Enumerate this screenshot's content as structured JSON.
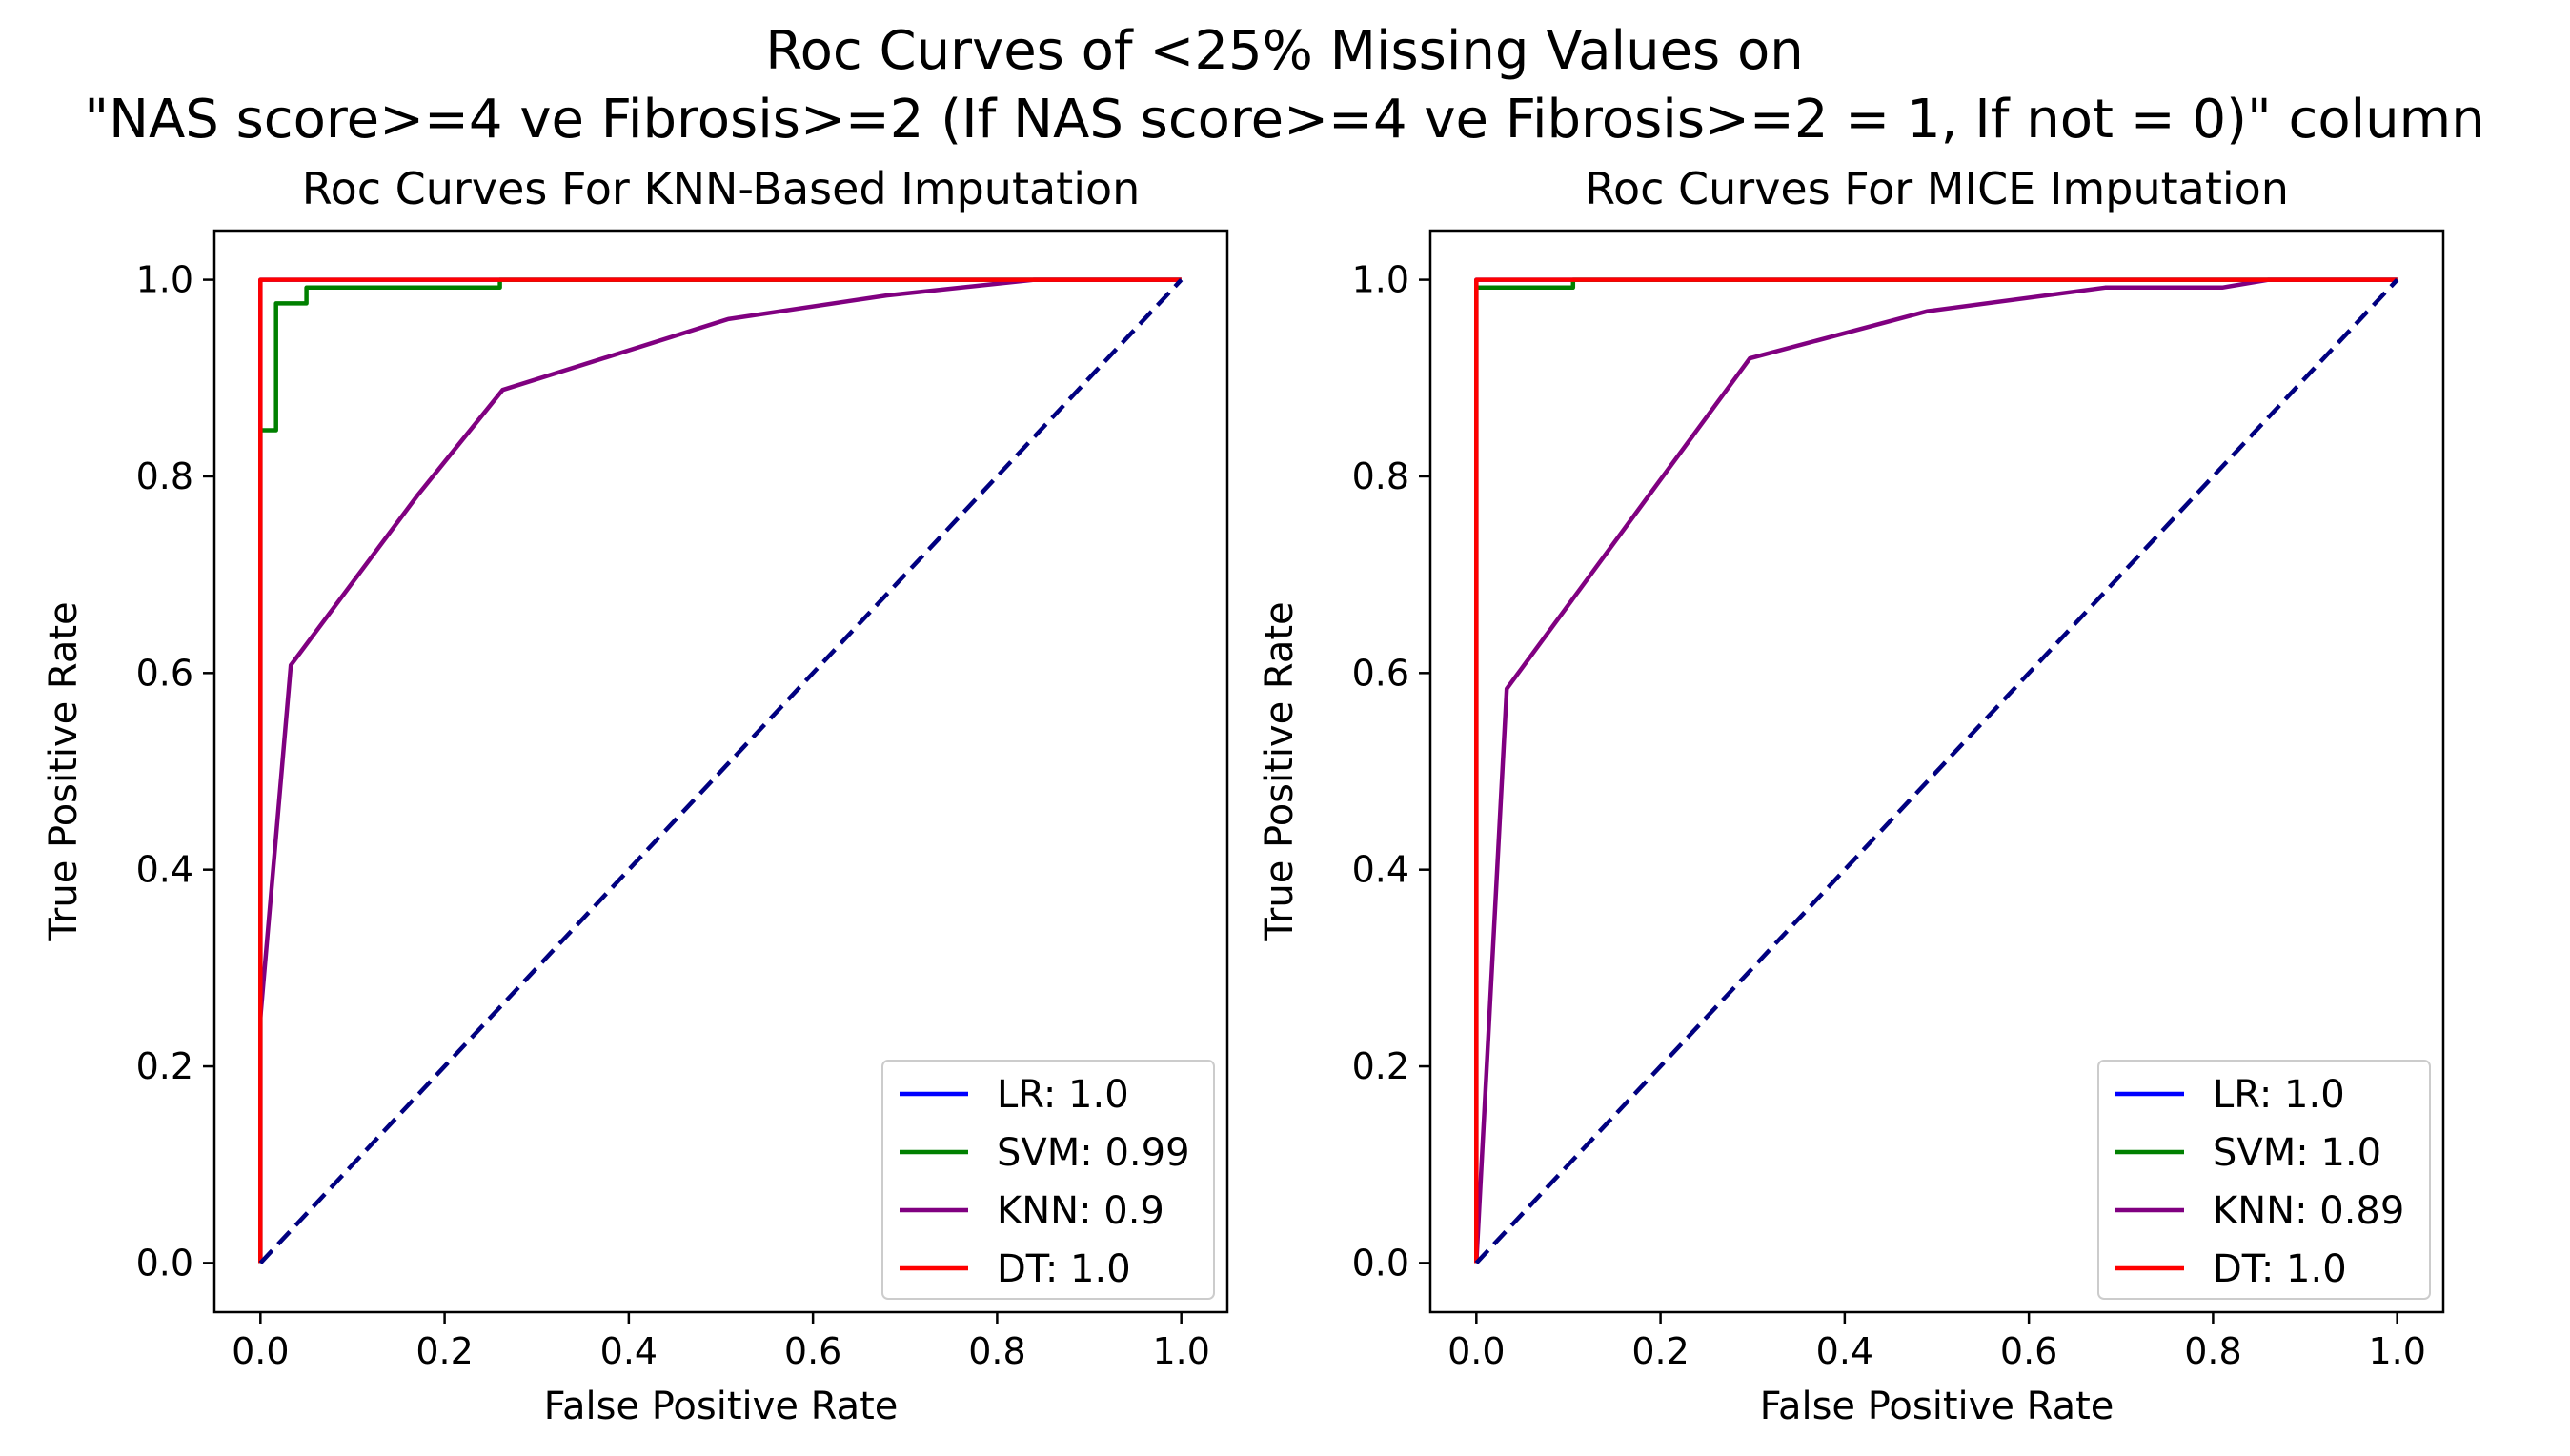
{
  "figure": {
    "suptitle_line1": "Roc Curves of <25% Missing Values on",
    "suptitle_line2": "\"NAS score>=4 ve Fibrosis>=2 (If NAS score>=4 ve Fibrosis>=2 = 1, If not = 0)\" column"
  },
  "chart_data": [
    {
      "type": "line",
      "title": "Roc Curves For KNN-Based Imputation",
      "xlabel": "False Positive Rate",
      "ylabel": "True Positive Rate",
      "xlim": [
        -0.05,
        1.05
      ],
      "ylim": [
        -0.05,
        1.05
      ],
      "xticks": [
        "0.0",
        "0.2",
        "0.4",
        "0.6",
        "0.8",
        "1.0"
      ],
      "yticks": [
        "0.0",
        "0.2",
        "0.4",
        "0.6",
        "0.8",
        "1.0"
      ],
      "legend_position": "lower-right",
      "grid": false,
      "series": [
        {
          "name": "LR: 1.0",
          "color": "#0000ff",
          "dashed": false,
          "x": [
            0,
            0,
            1
          ],
          "y": [
            0,
            1,
            1
          ]
        },
        {
          "name": "SVM: 0.99",
          "color": "#008000",
          "dashed": false,
          "x": [
            0,
            0,
            0.017,
            0.017,
            0.05,
            0.05,
            0.26,
            0.26,
            1
          ],
          "y": [
            0,
            0.847,
            0.847,
            0.976,
            0.976,
            0.992,
            0.992,
            1,
            1
          ]
        },
        {
          "name": "KNN: 0.9",
          "color": "#800080",
          "dashed": false,
          "x": [
            0,
            0.033,
            0.17,
            0.263,
            0.508,
            0.68,
            0.84,
            1
          ],
          "y": [
            0.25,
            0.608,
            0.78,
            0.888,
            0.96,
            0.984,
            1,
            1
          ]
        },
        {
          "name": "DT: 1.0",
          "color": "#ff0000",
          "dashed": false,
          "x": [
            0,
            0,
            1
          ],
          "y": [
            0,
            1,
            1
          ]
        },
        {
          "name": "",
          "color": "#000080",
          "dashed": true,
          "x": [
            0,
            1
          ],
          "y": [
            0,
            1
          ]
        }
      ]
    },
    {
      "type": "line",
      "title": "Roc Curves For MICE Imputation",
      "xlabel": "False Positive Rate",
      "ylabel": "True Positive Rate",
      "xlim": [
        -0.05,
        1.05
      ],
      "ylim": [
        -0.05,
        1.05
      ],
      "xticks": [
        "0.0",
        "0.2",
        "0.4",
        "0.6",
        "0.8",
        "1.0"
      ],
      "yticks": [
        "0.0",
        "0.2",
        "0.4",
        "0.6",
        "0.8",
        "1.0"
      ],
      "legend_position": "lower-right",
      "grid": false,
      "series": [
        {
          "name": "LR: 1.0",
          "color": "#0000ff",
          "dashed": false,
          "x": [
            0,
            0,
            1
          ],
          "y": [
            0,
            1,
            1
          ]
        },
        {
          "name": "SVM: 1.0",
          "color": "#008000",
          "dashed": false,
          "x": [
            0,
            0,
            0.105,
            0.105,
            1
          ],
          "y": [
            0,
            0.992,
            0.992,
            1,
            1
          ]
        },
        {
          "name": "KNN: 0.89",
          "color": "#800080",
          "dashed": false,
          "x": [
            0,
            0.033,
            0.19,
            0.297,
            0.49,
            0.683,
            0.81,
            0.86,
            1
          ],
          "y": [
            0,
            0.584,
            0.784,
            0.92,
            0.968,
            0.992,
            0.992,
            1,
            1
          ]
        },
        {
          "name": "DT: 1.0",
          "color": "#ff0000",
          "dashed": false,
          "x": [
            0,
            0,
            1
          ],
          "y": [
            0,
            1,
            1
          ]
        },
        {
          "name": "",
          "color": "#000080",
          "dashed": true,
          "x": [
            0,
            1
          ],
          "y": [
            0,
            1
          ]
        }
      ]
    }
  ]
}
